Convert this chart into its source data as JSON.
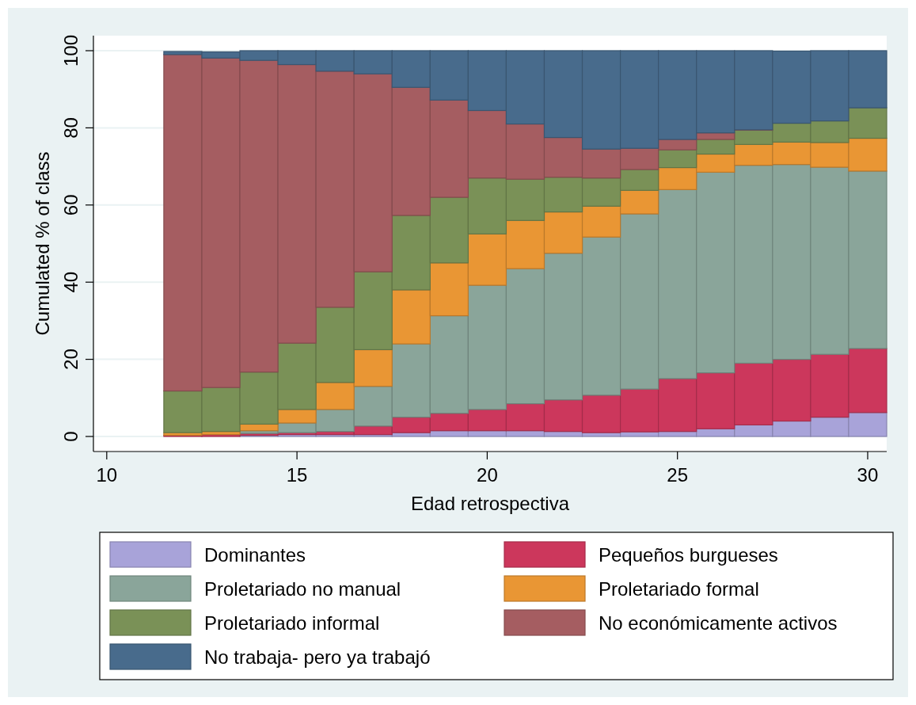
{
  "chart_data": {
    "type": "bar",
    "stacked": true,
    "xlabel": "Edad  retrospectiva",
    "ylabel": "Cumulated % of class",
    "x": [
      12,
      13,
      14,
      15,
      16,
      17,
      18,
      19,
      20,
      21,
      22,
      23,
      24,
      25,
      26,
      27,
      28,
      29,
      30
    ],
    "xlim": [
      9.65,
      30.5
    ],
    "xticks": [
      10,
      15,
      20,
      25,
      30
    ],
    "ylim": [
      -3.9,
      103.9
    ],
    "yticks": [
      0,
      20,
      40,
      60,
      80,
      100
    ],
    "grid": "y",
    "legend": "bottom",
    "series": [
      {
        "name": "Dominantes",
        "color": "#a8a3d9",
        "values": [
          null,
          null,
          0.3,
          0.5,
          0.5,
          0.5,
          1,
          1.5,
          1.5,
          1.5,
          1.3,
          1,
          1.2,
          1.3,
          2,
          3,
          4,
          5,
          6.2
        ]
      },
      {
        "name": "Pequeños burgueses",
        "color": "#cc375c",
        "values": [
          0.3,
          0.5,
          0.5,
          0.5,
          0.8,
          2.2,
          4,
          4.5,
          5.5,
          7,
          8.2,
          9.7,
          11.1,
          13.7,
          14.5,
          16,
          16,
          16.3,
          16.6
        ]
      },
      {
        "name": "Proletariado no manual",
        "color": "#8aa59a",
        "values": [
          0,
          null,
          0.7,
          2.5,
          5.7,
          10.3,
          19,
          25.3,
          32.2,
          35,
          38,
          41,
          45.4,
          49,
          52,
          51.3,
          50.5,
          48.5,
          46
        ]
      },
      {
        "name": "Proletariado formal",
        "color": "#e99634",
        "values": [
          0.7,
          0.8,
          1.7,
          3.5,
          7,
          9.5,
          14,
          13.7,
          13.3,
          12.5,
          10.7,
          8,
          6.1,
          5.7,
          4.7,
          5.4,
          5.8,
          6.4,
          8.5
        ]
      },
      {
        "name": "Proletariado informal",
        "color": "#7a9157",
        "values": [
          10.8,
          11.4,
          13.5,
          17.2,
          19.5,
          20.2,
          19.3,
          17,
          14.5,
          10.7,
          9,
          7.3,
          5.4,
          4.6,
          3.8,
          3.7,
          4.9,
          5.6,
          7.9
        ]
      },
      {
        "name": "No económicamente activos",
        "color": "#a55d61",
        "values": [
          87.2,
          85.4,
          80.8,
          72.2,
          61.2,
          51.3,
          33.2,
          25.2,
          17.5,
          14.3,
          10.3,
          7.5,
          5.5,
          2.7,
          1.7,
          0.1,
          null,
          0,
          0
        ]
      },
      {
        "name": "No trabaja- pero ya trabajó",
        "color": "#486b8c",
        "values": [
          0.8,
          1.6,
          2.5,
          3.6,
          5.3,
          6,
          9.5,
          12.8,
          15.5,
          19,
          22.5,
          25.5,
          25.3,
          23,
          21.3,
          20.5,
          18.7,
          18.2,
          14.8
        ]
      }
    ]
  }
}
